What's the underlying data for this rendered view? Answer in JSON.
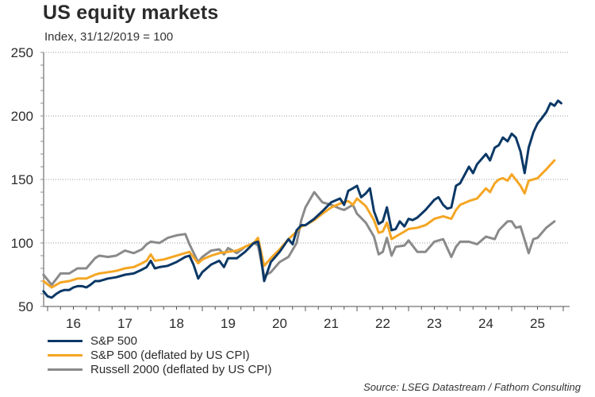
{
  "header": {
    "title": "US equity markets",
    "subtitle": "Index, 31/12/2019 = 100"
  },
  "source": "Source: LSEG Datastream / Fathom Consulting",
  "chart_data": {
    "type": "line",
    "title": "US equity markets",
    "subtitle": "Index, 31/12/2019 = 100",
    "xlabel": "",
    "ylabel": "",
    "ylim": [
      50,
      250
    ],
    "xlim": [
      2015.92,
      2026.0
    ],
    "yticks": [
      50,
      100,
      150,
      200,
      250
    ],
    "ytick_labels": [
      "50",
      "100",
      "150",
      "200",
      "250"
    ],
    "xtick_labels": [
      "16",
      "17",
      "18",
      "19",
      "20",
      "21",
      "22",
      "23",
      "24",
      "25"
    ],
    "xtick_centers": [
      2016.5,
      2017.5,
      2018.5,
      2019.5,
      2020.5,
      2021.5,
      2022.5,
      2023.5,
      2024.5,
      2025.5
    ],
    "grid": "horizontal dotted at major y ticks",
    "legend_position": "bottom-left",
    "series": [
      {
        "name": "S&P 500",
        "color": "#0b3866",
        "points": [
          [
            2015.92,
            62
          ],
          [
            2016.0,
            58
          ],
          [
            2016.08,
            57
          ],
          [
            2016.17,
            60
          ],
          [
            2016.25,
            62
          ],
          [
            2016.33,
            63
          ],
          [
            2016.42,
            63
          ],
          [
            2016.5,
            65
          ],
          [
            2016.58,
            66
          ],
          [
            2016.67,
            66
          ],
          [
            2016.75,
            65
          ],
          [
            2016.83,
            67
          ],
          [
            2016.92,
            70
          ],
          [
            2017.0,
            70
          ],
          [
            2017.17,
            72
          ],
          [
            2017.33,
            73
          ],
          [
            2017.5,
            75
          ],
          [
            2017.67,
            76
          ],
          [
            2017.83,
            79
          ],
          [
            2017.92,
            81
          ],
          [
            2018.0,
            86
          ],
          [
            2018.08,
            80
          ],
          [
            2018.17,
            81
          ],
          [
            2018.33,
            82
          ],
          [
            2018.5,
            85
          ],
          [
            2018.67,
            89
          ],
          [
            2018.75,
            90
          ],
          [
            2018.83,
            83
          ],
          [
            2018.92,
            72
          ],
          [
            2019.0,
            77
          ],
          [
            2019.17,
            83
          ],
          [
            2019.33,
            86
          ],
          [
            2019.42,
            81
          ],
          [
            2019.5,
            88
          ],
          [
            2019.67,
            88
          ],
          [
            2019.83,
            93
          ],
          [
            2020.0,
            100
          ],
          [
            2020.08,
            101
          ],
          [
            2020.12,
            94
          ],
          [
            2020.2,
            70
          ],
          [
            2020.33,
            85
          ],
          [
            2020.5,
            93
          ],
          [
            2020.67,
            103
          ],
          [
            2020.75,
            99
          ],
          [
            2020.83,
            110
          ],
          [
            2020.92,
            114
          ],
          [
            2021.0,
            114
          ],
          [
            2021.17,
            119
          ],
          [
            2021.33,
            125
          ],
          [
            2021.5,
            132
          ],
          [
            2021.67,
            135
          ],
          [
            2021.75,
            130
          ],
          [
            2021.83,
            141
          ],
          [
            2021.92,
            143
          ],
          [
            2022.0,
            145
          ],
          [
            2022.08,
            136
          ],
          [
            2022.17,
            139
          ],
          [
            2022.25,
            143
          ],
          [
            2022.33,
            125
          ],
          [
            2022.42,
            115
          ],
          [
            2022.5,
            117
          ],
          [
            2022.58,
            128
          ],
          [
            2022.67,
            110
          ],
          [
            2022.75,
            111
          ],
          [
            2022.83,
            117
          ],
          [
            2022.92,
            113
          ],
          [
            2023.0,
            119
          ],
          [
            2023.08,
            118
          ],
          [
            2023.17,
            120
          ],
          [
            2023.33,
            126
          ],
          [
            2023.5,
            134
          ],
          [
            2023.58,
            136
          ],
          [
            2023.67,
            130
          ],
          [
            2023.75,
            127
          ],
          [
            2023.83,
            128
          ],
          [
            2023.92,
            145
          ],
          [
            2024.0,
            147
          ],
          [
            2024.17,
            160
          ],
          [
            2024.25,
            155
          ],
          [
            2024.33,
            162
          ],
          [
            2024.5,
            170
          ],
          [
            2024.58,
            165
          ],
          [
            2024.67,
            175
          ],
          [
            2024.75,
            177
          ],
          [
            2024.83,
            183
          ],
          [
            2024.92,
            180
          ],
          [
            2025.0,
            186
          ],
          [
            2025.08,
            183
          ],
          [
            2025.17,
            172
          ],
          [
            2025.25,
            155
          ],
          [
            2025.33,
            175
          ],
          [
            2025.42,
            187
          ],
          [
            2025.5,
            194
          ],
          [
            2025.58,
            198
          ],
          [
            2025.67,
            203
          ],
          [
            2025.75,
            210
          ],
          [
            2025.83,
            208
          ],
          [
            2025.9,
            212
          ],
          [
            2025.96,
            210
          ]
        ]
      },
      {
        "name": "S&P 500 (deflated by US CPI)",
        "color": "#f5a623",
        "points": [
          [
            2015.92,
            70
          ],
          [
            2016.08,
            65
          ],
          [
            2016.25,
            69
          ],
          [
            2016.42,
            70
          ],
          [
            2016.58,
            72
          ],
          [
            2016.75,
            72
          ],
          [
            2016.92,
            75
          ],
          [
            2017.0,
            76
          ],
          [
            2017.17,
            77
          ],
          [
            2017.33,
            78
          ],
          [
            2017.5,
            80
          ],
          [
            2017.67,
            81
          ],
          [
            2017.83,
            84
          ],
          [
            2017.92,
            86
          ],
          [
            2018.0,
            91
          ],
          [
            2018.08,
            86
          ],
          [
            2018.25,
            87
          ],
          [
            2018.42,
            89
          ],
          [
            2018.58,
            91
          ],
          [
            2018.75,
            93
          ],
          [
            2018.92,
            84
          ],
          [
            2019.0,
            87
          ],
          [
            2019.17,
            90
          ],
          [
            2019.33,
            92
          ],
          [
            2019.5,
            93
          ],
          [
            2019.67,
            94
          ],
          [
            2019.83,
            97
          ],
          [
            2020.0,
            100
          ],
          [
            2020.08,
            104
          ],
          [
            2020.2,
            82
          ],
          [
            2020.33,
            88
          ],
          [
            2020.5,
            95
          ],
          [
            2020.67,
            103
          ],
          [
            2020.83,
            109
          ],
          [
            2020.92,
            113
          ],
          [
            2021.0,
            114
          ],
          [
            2021.17,
            118
          ],
          [
            2021.33,
            123
          ],
          [
            2021.5,
            128
          ],
          [
            2021.67,
            131
          ],
          [
            2021.83,
            133
          ],
          [
            2021.92,
            130
          ],
          [
            2022.0,
            135
          ],
          [
            2022.17,
            129
          ],
          [
            2022.33,
            118
          ],
          [
            2022.42,
            108
          ],
          [
            2022.5,
            109
          ],
          [
            2022.58,
            116
          ],
          [
            2022.67,
            103
          ],
          [
            2022.75,
            105
          ],
          [
            2022.92,
            109
          ],
          [
            2023.0,
            111
          ],
          [
            2023.17,
            112
          ],
          [
            2023.33,
            114
          ],
          [
            2023.5,
            119
          ],
          [
            2023.67,
            121
          ],
          [
            2023.83,
            119
          ],
          [
            2023.92,
            126
          ],
          [
            2024.0,
            130
          ],
          [
            2024.17,
            133
          ],
          [
            2024.33,
            135
          ],
          [
            2024.5,
            143
          ],
          [
            2024.58,
            140
          ],
          [
            2024.67,
            147
          ],
          [
            2024.75,
            150
          ],
          [
            2024.83,
            151
          ],
          [
            2024.92,
            149
          ],
          [
            2025.0,
            154
          ],
          [
            2025.17,
            145
          ],
          [
            2025.25,
            139
          ],
          [
            2025.33,
            149
          ],
          [
            2025.5,
            151
          ],
          [
            2025.67,
            158
          ],
          [
            2025.83,
            165
          ]
        ]
      },
      {
        "name": "Russell 2000 (deflated by US CPI)",
        "color": "#8a8a8a",
        "points": [
          [
            2015.92,
            75
          ],
          [
            2016.08,
            67
          ],
          [
            2016.25,
            76
          ],
          [
            2016.42,
            76
          ],
          [
            2016.58,
            80
          ],
          [
            2016.75,
            80
          ],
          [
            2016.92,
            88
          ],
          [
            2017.0,
            90
          ],
          [
            2017.17,
            89
          ],
          [
            2017.33,
            90
          ],
          [
            2017.5,
            94
          ],
          [
            2017.67,
            92
          ],
          [
            2017.83,
            95
          ],
          [
            2017.92,
            99
          ],
          [
            2018.0,
            101
          ],
          [
            2018.17,
            100
          ],
          [
            2018.33,
            104
          ],
          [
            2018.5,
            106
          ],
          [
            2018.67,
            107
          ],
          [
            2018.75,
            99
          ],
          [
            2018.92,
            85
          ],
          [
            2019.0,
            89
          ],
          [
            2019.17,
            94
          ],
          [
            2019.33,
            95
          ],
          [
            2019.42,
            91
          ],
          [
            2019.5,
            96
          ],
          [
            2019.67,
            92
          ],
          [
            2019.83,
            97
          ],
          [
            2020.0,
            100
          ],
          [
            2020.08,
            98
          ],
          [
            2020.2,
            74
          ],
          [
            2020.33,
            77
          ],
          [
            2020.5,
            85
          ],
          [
            2020.67,
            89
          ],
          [
            2020.83,
            100
          ],
          [
            2020.92,
            118
          ],
          [
            2021.0,
            128
          ],
          [
            2021.17,
            140
          ],
          [
            2021.33,
            132
          ],
          [
            2021.5,
            130
          ],
          [
            2021.67,
            127
          ],
          [
            2021.75,
            126
          ],
          [
            2021.92,
            130
          ],
          [
            2022.0,
            123
          ],
          [
            2022.17,
            116
          ],
          [
            2022.33,
            105
          ],
          [
            2022.42,
            91
          ],
          [
            2022.5,
            93
          ],
          [
            2022.58,
            104
          ],
          [
            2022.67,
            90
          ],
          [
            2022.75,
            97
          ],
          [
            2022.92,
            98
          ],
          [
            2023.0,
            102
          ],
          [
            2023.17,
            93
          ],
          [
            2023.33,
            93
          ],
          [
            2023.5,
            101
          ],
          [
            2023.67,
            103
          ],
          [
            2023.83,
            89
          ],
          [
            2023.92,
            97
          ],
          [
            2024.0,
            101
          ],
          [
            2024.17,
            101
          ],
          [
            2024.33,
            99
          ],
          [
            2024.5,
            105
          ],
          [
            2024.67,
            103
          ],
          [
            2024.75,
            110
          ],
          [
            2024.92,
            117
          ],
          [
            2025.0,
            117
          ],
          [
            2025.08,
            112
          ],
          [
            2025.17,
            113
          ],
          [
            2025.33,
            92
          ],
          [
            2025.42,
            103
          ],
          [
            2025.5,
            104
          ],
          [
            2025.67,
            112
          ],
          [
            2025.83,
            117
          ]
        ]
      }
    ]
  }
}
